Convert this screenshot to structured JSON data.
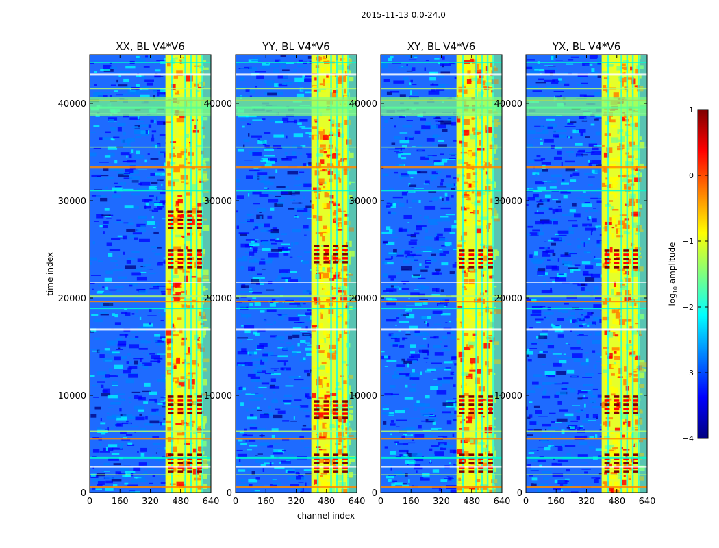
{
  "chart_data": {
    "type": "heatmap",
    "suptitle": "2015-11-13 0.0-24.0",
    "xlabel": "channel index",
    "ylabel": "time index",
    "xlim": [
      0,
      640
    ],
    "ylim": [
      0,
      45000
    ],
    "xticks": [
      0,
      160,
      320,
      480,
      640
    ],
    "yticks": [
      0,
      10000,
      20000,
      30000,
      40000
    ],
    "panels": [
      {
        "title": "XX, BL V4*V6",
        "band_start": 400,
        "band_end": 600,
        "hot_rows": [
          3000,
          9000,
          24000,
          28000
        ]
      },
      {
        "title": "YY, BL V4*V6",
        "band_start": 400,
        "band_end": 600,
        "hot_rows": [
          3000,
          8500,
          24500
        ]
      },
      {
        "title": "XY, BL V4*V6",
        "band_start": 400,
        "band_end": 600,
        "hot_rows": [
          3000,
          9000,
          24000
        ]
      },
      {
        "title": "YX, BL V4*V6",
        "band_start": 400,
        "band_end": 600,
        "hot_rows": [
          3000,
          9000,
          24000
        ]
      }
    ],
    "colorbar": {
      "label": "log10 amplitude",
      "label_base": "log",
      "label_sub": "10",
      "label_rest": " amplitude",
      "range": [
        -4,
        1
      ],
      "ticks": [
        1,
        0,
        -1,
        -2,
        -3,
        -4
      ],
      "tick_labels": [
        "1",
        "0",
        "−1",
        "−2",
        "−3",
        "−4"
      ],
      "colormap": "jet"
    },
    "colormap_stops": [
      "#00007f",
      "#0000ff",
      "#007fff",
      "#00ffff",
      "#7fff7f",
      "#ffff00",
      "#ff7f00",
      "#ff0000",
      "#7f0000"
    ]
  }
}
